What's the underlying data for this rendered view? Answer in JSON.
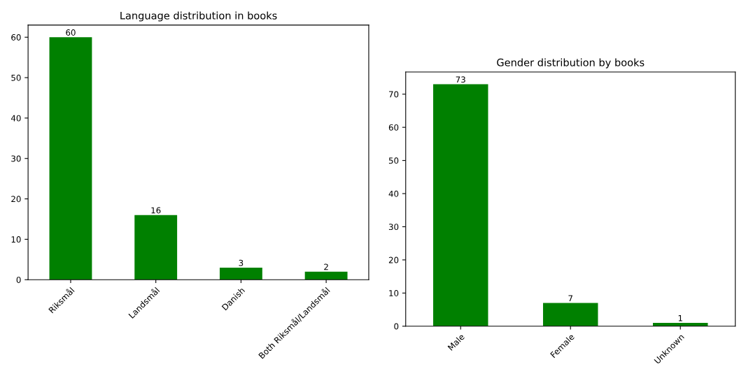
{
  "chart_data": [
    {
      "type": "bar",
      "title": "Language distribution in books",
      "categories": [
        "Riksmål",
        "Landsmål",
        "Danish",
        "Both Riksmål/Landsmål"
      ],
      "values": [
        60,
        16,
        3,
        2
      ],
      "color": "#008000",
      "ylim": [
        0,
        63
      ],
      "yticks": [
        0,
        10,
        20,
        30,
        40,
        50,
        60
      ],
      "data_labels": true,
      "grid": false,
      "legend": false
    },
    {
      "type": "bar",
      "title": "Gender distribution by books",
      "categories": [
        "Male",
        "Female",
        "Unknown"
      ],
      "values": [
        73,
        7,
        1
      ],
      "color": "#008000",
      "ylim": [
        0,
        76.7
      ],
      "yticks": [
        0,
        10,
        20,
        30,
        40,
        50,
        60,
        70
      ],
      "data_labels": true,
      "grid": false,
      "legend": false
    }
  ]
}
